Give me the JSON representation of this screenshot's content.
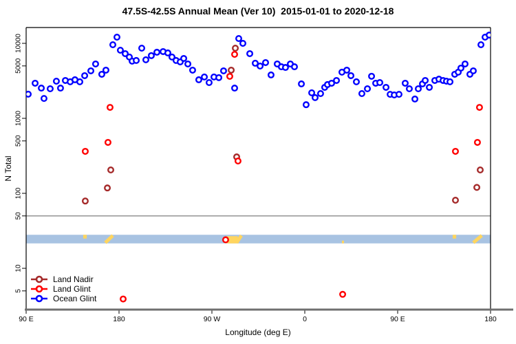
{
  "chart_data": {
    "type": "scatter",
    "title": "47.5S-42.5S Annual Mean (Ver 10)  2015-01-01 to 2020-12-18",
    "xlabel": "Longitude (deg E)",
    "ylabel": "N Total",
    "grid": false,
    "legend_position": "bottom-left",
    "x_axis": {
      "unit": "degrees east, wrapped",
      "range_deg": [
        90,
        540
      ],
      "ticks": [
        {
          "pos": 90,
          "label": "90 E"
        },
        {
          "pos": 180,
          "label": "180"
        },
        {
          "pos": 270,
          "label": "90 W"
        },
        {
          "pos": 360,
          "label": "0"
        },
        {
          "pos": 450,
          "label": "90 E"
        },
        {
          "pos": 540,
          "label": "180"
        }
      ]
    },
    "y_axis": {
      "scale": "log10",
      "ticks": [
        10000,
        5000,
        1000,
        500,
        100,
        50,
        10,
        5
      ],
      "limits": [
        2.8,
        16000
      ]
    },
    "divider_value": 50,
    "map_strip": {
      "ocean_color": "#A8C3E2",
      "land_color": "#FFD55F",
      "value_range": [
        21.5,
        28
      ],
      "land_segments": [
        {
          "kind": "patch-top",
          "lon_start": 145.3,
          "lon_end": 148.7
        },
        {
          "kind": "diagonal",
          "lon_start": 166.7,
          "lon_end": 174.0
        },
        {
          "kind": "patch",
          "lon_start": 284.0,
          "lon_end": 295.0
        },
        {
          "kind": "diagonal",
          "lon_start": 294.0,
          "lon_end": 298.5
        },
        {
          "kind": "patch-bottom",
          "lon_start": 396.0,
          "lon_end": 398.0
        },
        {
          "kind": "patch-top",
          "lon_start": 503.3,
          "lon_end": 506.7
        },
        {
          "kind": "diagonal",
          "lon_start": 523.3,
          "lon_end": 531.5
        }
      ]
    },
    "series": [
      {
        "name": "Land Nadir",
        "color": "#A52A2A",
        "points": [
          [
            147.3,
            79
          ],
          [
            168.7,
            118
          ],
          [
            172.0,
            205
          ],
          [
            288.7,
            4390
          ],
          [
            292.7,
            8630
          ],
          [
            294.0,
            306
          ],
          [
            506.0,
            81
          ],
          [
            526.7,
            120
          ],
          [
            530.0,
            205
          ]
        ]
      },
      {
        "name": "Land Glint",
        "color": "#FF0000",
        "points": [
          [
            147.3,
            363
          ],
          [
            169.3,
            478
          ],
          [
            171.3,
            1400
          ],
          [
            184.0,
            3.9
          ],
          [
            283.3,
            24
          ],
          [
            287.3,
            3630
          ],
          [
            292.0,
            7130
          ],
          [
            295.3,
            270
          ],
          [
            396.7,
            4.5
          ],
          [
            506.0,
            363
          ],
          [
            527.3,
            478
          ],
          [
            529.3,
            1400
          ]
        ]
      },
      {
        "name": "Ocean Glint",
        "color": "#0000FF",
        "points": [
          [
            92.0,
            2100
          ],
          [
            98.7,
            2940
          ],
          [
            104.7,
            2530
          ],
          [
            107.3,
            1840
          ],
          [
            113.3,
            2480
          ],
          [
            119.3,
            3130
          ],
          [
            123.3,
            2530
          ],
          [
            128.0,
            3200
          ],
          [
            132.7,
            3070
          ],
          [
            137.3,
            3270
          ],
          [
            142.0,
            3070
          ],
          [
            146.7,
            3710
          ],
          [
            152.7,
            4300
          ],
          [
            157.3,
            5310
          ],
          [
            163.3,
            3870
          ],
          [
            167.3,
            4390
          ],
          [
            174.0,
            9590
          ],
          [
            178.0,
            12100
          ],
          [
            181.3,
            8100
          ],
          [
            186.0,
            7290
          ],
          [
            190.0,
            6570
          ],
          [
            192.7,
            5790
          ],
          [
            196.7,
            5910
          ],
          [
            202.0,
            8630
          ],
          [
            206.0,
            6040
          ],
          [
            211.3,
            6860
          ],
          [
            216.7,
            7610
          ],
          [
            222.7,
            7770
          ],
          [
            227.3,
            7450
          ],
          [
            231.3,
            6570
          ],
          [
            235.3,
            5910
          ],
          [
            239.3,
            5660
          ],
          [
            242.7,
            6290
          ],
          [
            246.7,
            5310
          ],
          [
            251.3,
            4390
          ],
          [
            257.3,
            3270
          ],
          [
            262.7,
            3560
          ],
          [
            267.3,
            3000
          ],
          [
            272.0,
            3560
          ],
          [
            276.7,
            3490
          ],
          [
            281.3,
            4300
          ],
          [
            292.0,
            2530
          ],
          [
            296.0,
            11600
          ],
          [
            300.0,
            10000
          ],
          [
            306.7,
            7290
          ],
          [
            312.0,
            5430
          ],
          [
            316.7,
            4980
          ],
          [
            322.0,
            5540
          ],
          [
            327.3,
            3790
          ],
          [
            333.3,
            5310
          ],
          [
            337.3,
            4870
          ],
          [
            341.3,
            4770
          ],
          [
            346.0,
            5310
          ],
          [
            350.0,
            4870
          ],
          [
            356.7,
            2880
          ],
          [
            361.3,
            1520
          ],
          [
            366.7,
            2190
          ],
          [
            370.0,
            1890
          ],
          [
            375.3,
            2140
          ],
          [
            379.3,
            2590
          ],
          [
            382.0,
            2820
          ],
          [
            386.0,
            2940
          ],
          [
            390.7,
            3200
          ],
          [
            396.0,
            4130
          ],
          [
            400.7,
            4390
          ],
          [
            404.7,
            3710
          ],
          [
            410.0,
            3070
          ],
          [
            415.3,
            2140
          ],
          [
            420.7,
            2480
          ],
          [
            424.7,
            3640
          ],
          [
            428.7,
            2940
          ],
          [
            432.7,
            3000
          ],
          [
            438.7,
            2590
          ],
          [
            442.7,
            2090
          ],
          [
            446.7,
            2050
          ],
          [
            451.3,
            2090
          ],
          [
            457.3,
            2940
          ],
          [
            461.3,
            2480
          ],
          [
            466.7,
            1810
          ],
          [
            470.0,
            2480
          ],
          [
            474.0,
            2880
          ],
          [
            476.7,
            3200
          ],
          [
            480.7,
            2590
          ],
          [
            486.0,
            3200
          ],
          [
            490.0,
            3330
          ],
          [
            494.0,
            3200
          ],
          [
            497.3,
            3130
          ],
          [
            500.7,
            3070
          ],
          [
            505.3,
            3870
          ],
          [
            508.7,
            4130
          ],
          [
            511.3,
            4680
          ],
          [
            515.3,
            5310
          ],
          [
            520.0,
            3870
          ],
          [
            523.3,
            4300
          ],
          [
            530.7,
            9590
          ],
          [
            534.7,
            12100
          ],
          [
            538.7,
            12900
          ]
        ]
      }
    ]
  }
}
